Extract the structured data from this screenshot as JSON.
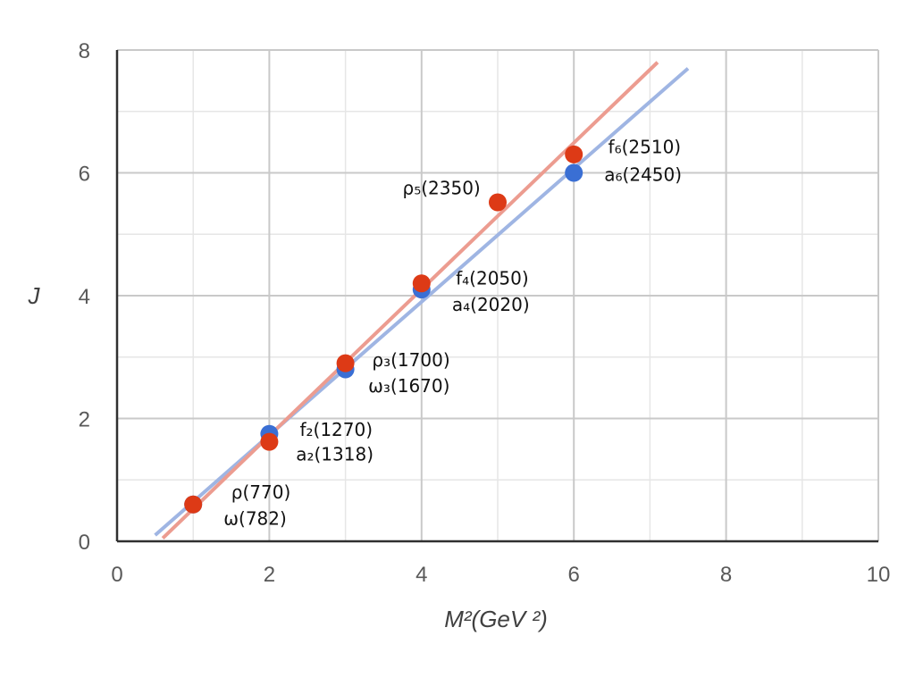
{
  "chart_data": {
    "type": "scatter",
    "xlabel": "M²(GeV ²)",
    "ylabel": "J",
    "xlim": [
      0,
      10
    ],
    "ylim": [
      0,
      8
    ],
    "xticks": [
      0,
      2,
      4,
      6,
      8,
      10
    ],
    "yticks": [
      0,
      2,
      4,
      6,
      8
    ],
    "minor_grid_step": 1,
    "grid": true,
    "legend": "none",
    "colors": {
      "series_a_points": "#3a6fd4",
      "series_a_line": "#9fb5e3",
      "series_b_points": "#dd3a16",
      "series_b_line": "#ec9c90",
      "grid_major": "#c9c9c9",
      "grid_minor": "#e6e6e6",
      "axis": "#303030"
    },
    "series": [
      {
        "points": [
          {
            "x": 1,
            "y": 0.6
          },
          {
            "x": 2,
            "y": 1.75
          },
          {
            "x": 3,
            "y": 2.8
          },
          {
            "x": 4,
            "y": 4.1
          },
          {
            "x": 6,
            "y": 6.0
          }
        ],
        "fit_line": {
          "x1": 0.5,
          "y1": 0.1,
          "x2": 7.5,
          "y2": 7.7
        }
      },
      {
        "points": [
          {
            "x": 1,
            "y": 0.6
          },
          {
            "x": 2,
            "y": 1.62
          },
          {
            "x": 3,
            "y": 2.9
          },
          {
            "x": 4,
            "y": 4.2
          },
          {
            "x": 5,
            "y": 5.52
          },
          {
            "x": 6,
            "y": 6.3
          }
        ],
        "fit_line": {
          "x1": 0.6,
          "y1": 0.05,
          "x2": 7.1,
          "y2": 7.8
        }
      }
    ],
    "annotations": [
      {
        "name": "rho-770-label",
        "x": 1.5,
        "y": 0.7,
        "text": "ρ(770)"
      },
      {
        "name": "omega-782-label",
        "x": 1.4,
        "y": 0.27,
        "text": "ω(782)"
      },
      {
        "name": "f2-1270-label",
        "x": 2.4,
        "y": 1.72,
        "text": "f₂(1270)"
      },
      {
        "name": "a2-1318-label",
        "x": 2.35,
        "y": 1.32,
        "text": "a₂(1318)"
      },
      {
        "name": "rho3-1700-label",
        "x": 3.35,
        "y": 2.85,
        "text": "ρ₃(1700)"
      },
      {
        "name": "omega3-1670-label",
        "x": 3.3,
        "y": 2.43,
        "text": "ω₃(1670)"
      },
      {
        "name": "f4-2050-label",
        "x": 4.45,
        "y": 4.18,
        "text": "f₄(2050)"
      },
      {
        "name": "a4-2020-label",
        "x": 4.4,
        "y": 3.75,
        "text": "a₄(2020)"
      },
      {
        "name": "rho5-2350-label",
        "x": 3.75,
        "y": 5.65,
        "text": "ρ₅(2350)"
      },
      {
        "name": "f6-2510-label",
        "x": 6.45,
        "y": 6.32,
        "text": "f₆(2510)"
      },
      {
        "name": "a6-2450-label",
        "x": 6.4,
        "y": 5.87,
        "text": "a₆(2450)"
      }
    ]
  }
}
